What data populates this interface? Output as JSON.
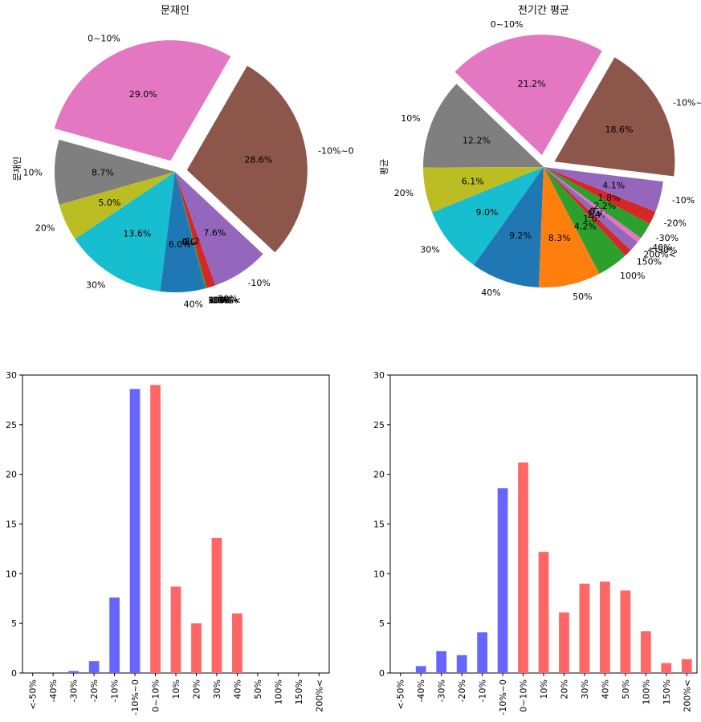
{
  "chart_data": [
    {
      "type": "pie",
      "title": "문재인",
      "ylabel": "문재인",
      "categories": [
        "0~10%",
        "10%",
        "20%",
        "30%",
        "40%",
        "50%",
        "100%",
        "150%",
        "200%<",
        "<-50%",
        "-40%",
        "-30%",
        "-20%",
        "-10%",
        "-10%~0"
      ],
      "values": [
        29.0,
        8.7,
        5.0,
        13.6,
        6.0,
        0.0,
        0.0,
        0.0,
        0.0,
        0.0,
        0.0,
        0.2,
        1.2,
        7.6,
        28.6
      ],
      "pct_labels": [
        "29.0%",
        "8.7%",
        "5.0%",
        "13.6%",
        "6.0%",
        "0.0%",
        "0.0%",
        "0.0%",
        "0.0%",
        "0.0%",
        "0.0%",
        "0.2%",
        "1.2%",
        "7.6%",
        "28.6%"
      ],
      "exploded": [
        "0~10%",
        "-10%~0"
      ]
    },
    {
      "type": "pie",
      "title": "전기간 평균",
      "ylabel": "평균",
      "categories": [
        "0~10%",
        "10%",
        "20%",
        "30%",
        "40%",
        "50%",
        "100%",
        "150%",
        "200%<",
        "<-50%",
        "-40%",
        "-30%",
        "-20%",
        "-10%",
        "-10%~0"
      ],
      "values": [
        21.2,
        12.2,
        6.1,
        9.0,
        9.2,
        8.3,
        4.2,
        1.0,
        1.4,
        0.0,
        0.7,
        2.2,
        1.8,
        4.1,
        18.6
      ],
      "pct_labels": [
        "21.2%",
        "12.2%",
        "6.1%",
        "9.0%",
        "9.2%",
        "8.3%",
        "4.2%",
        "1.0%",
        "1.4%",
        "0.0%",
        "0.7%",
        "2.2%",
        "1.8%",
        "4.1%",
        "18.6%"
      ],
      "exploded": [
        "0~10%",
        "-10%~0"
      ]
    },
    {
      "type": "bar",
      "categories": [
        "<-50%",
        "-40%",
        "-30%",
        "-20%",
        "-10%",
        "-10%~0",
        "0~10%",
        "10%",
        "20%",
        "30%",
        "40%",
        "50%",
        "100%",
        "150%",
        "200%<"
      ],
      "values": [
        0.0,
        0.0,
        0.2,
        1.2,
        7.6,
        28.6,
        29.0,
        8.7,
        5.0,
        13.6,
        6.0,
        0.0,
        0.0,
        0.0,
        0.0
      ],
      "ylim": [
        0,
        30
      ],
      "yticks": [
        "0",
        "5",
        "10",
        "15",
        "20",
        "25",
        "30"
      ]
    },
    {
      "type": "bar",
      "categories": [
        "<-50%",
        "-40%",
        "-30%",
        "-20%",
        "-10%",
        "-10%~0",
        "0~10%",
        "10%",
        "20%",
        "30%",
        "40%",
        "50%",
        "100%",
        "150%",
        "200%<"
      ],
      "values": [
        0.0,
        0.7,
        2.2,
        1.8,
        4.1,
        18.6,
        21.2,
        12.2,
        6.1,
        9.0,
        9.2,
        8.3,
        4.2,
        1.0,
        1.4
      ],
      "ylim": [
        0,
        30
      ],
      "yticks": [
        "0",
        "5",
        "10",
        "15",
        "20",
        "25",
        "30"
      ]
    }
  ],
  "colors": {
    "slices": [
      "#e377c2",
      "#7f7f7f",
      "#bcbd22",
      "#17becf",
      "#1f77b4",
      "#ff7f0e",
      "#2ca02c",
      "#d62728",
      "#9467bd",
      "#8c564b",
      "#e377c2",
      "#2ca02c",
      "#d62728",
      "#9467bd",
      "#8c564b"
    ],
    "bar_negative": "#6666ff",
    "bar_positive": "#ff6666",
    "axis": "#000000"
  }
}
